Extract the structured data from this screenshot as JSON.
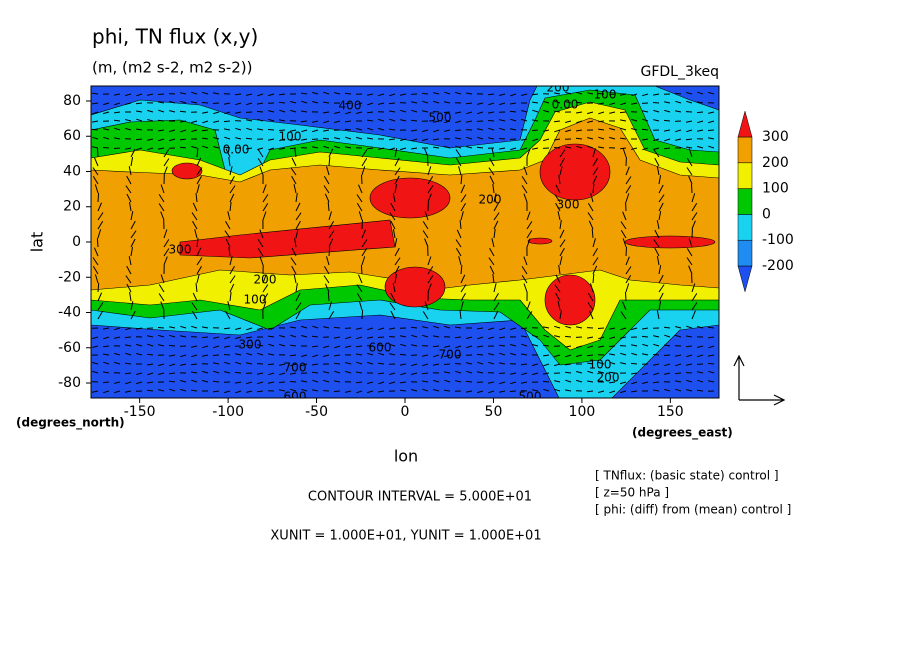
{
  "chart_data": {
    "type": "contour",
    "title": "phi, TN flux (x,y)",
    "subtitle": "(m, (m2 s-2, m2 s-2))",
    "model": "GFDL_3keq",
    "x_label": "lon",
    "y_label": "lat",
    "x_units": "(degrees_east)",
    "y_units": "(degrees_north)",
    "xlim": [
      -177.5,
      177.5
    ],
    "xticks": [
      -150,
      -100,
      -50,
      0,
      50,
      100,
      150
    ],
    "ylim": [
      -88.5,
      88.5
    ],
    "yticks": [
      -80,
      -60,
      -40,
      -20,
      0,
      20,
      40,
      60,
      80
    ],
    "colorbar": {
      "levels": [
        -200,
        -100,
        0,
        100,
        200,
        300
      ],
      "colors": [
        "#1e50f0",
        "#1e8cf0",
        "#18d2f0",
        "#00c800",
        "#f0f000",
        "#f0a000",
        "#f01414"
      ]
    },
    "contour_labels": [
      "400",
      "500",
      "200",
      "0.00",
      "100",
      "0.00",
      "100",
      "200",
      "300",
      "300",
      "200",
      "100",
      "300",
      "600",
      "700",
      "700",
      "600",
      "500",
      "100",
      "200"
    ],
    "contour_interval": "CONTOUR INTERVAL = 5.000E+01",
    "units_note": "XUNIT = 1.000E+01, YUNIT = 1.000E+01",
    "notes": [
      "[ TNflux: (basic state) control ]",
      "[ z=50 hPa ]",
      "[ phi: (diff) from (mean) control ]"
    ]
  }
}
